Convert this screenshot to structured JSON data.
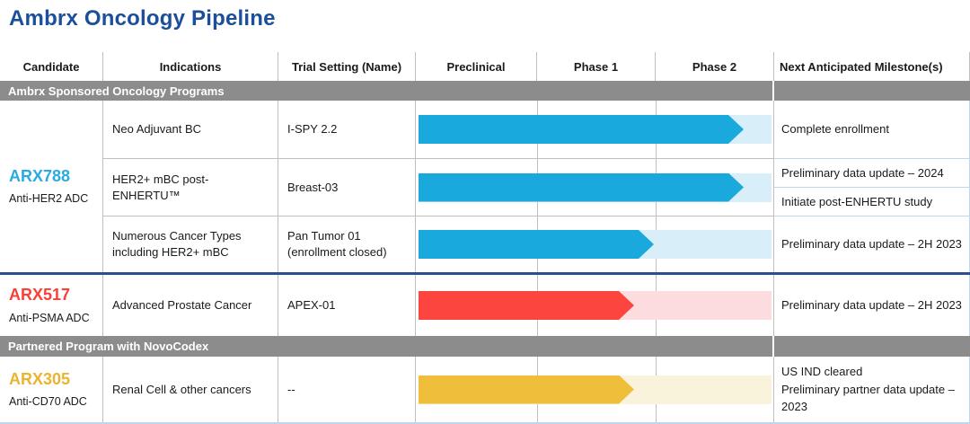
{
  "title": "Ambrx Oncology Pipeline",
  "title_style": "color:#1B4E9B",
  "columns": {
    "candidate": "Candidate",
    "indications": "Indications",
    "trial": "Trial Setting (Name)",
    "preclinical": "Preclinical",
    "phase1": "Phase 1",
    "phase2": "Phase 2",
    "milestones": "Next Anticipated Milestone(s)"
  },
  "sections": {
    "sponsored": {
      "label": "Ambrx Sponsored Oncology Programs"
    },
    "partnered": {
      "label": "Partnered Program with NovoCodex"
    }
  },
  "programs": {
    "arx788": {
      "name": "ARX788",
      "name_style": "color:#29ABE2",
      "type": "Anti-HER2 ADC",
      "rows": {
        "ispy": {
          "indication": "Neo Adjuvant BC",
          "trial": "I-SPY 2.2",
          "milestone": "Complete enrollment",
          "bar_solid": "width:362px;background:#1AA9DD",
          "bar_trail": "background:#D8EEF9"
        },
        "breast03": {
          "indication": "HER2+ mBC post-ENHERTU™",
          "trial": "Breast-03",
          "milestone_1": "Preliminary data update – 2024",
          "milestone_2": "Initiate post-ENHERTU study",
          "bar_solid": "width:362px;background:#1AA9DD",
          "bar_trail": "background:#D8EEF9"
        },
        "pantumor": {
          "indication": "Numerous Cancer Types including HER2+ mBC",
          "trial": "Pan Tumor 01 (enrollment closed)",
          "milestone": "Preliminary data update – 2H 2023",
          "bar_solid": "width:262px;background:#1AA9DD",
          "bar_trail": "background:#D8EEF9"
        }
      }
    },
    "arx517": {
      "name": "ARX517",
      "name_style": "color:#FB3E36",
      "type": "Anti-PSMA ADC",
      "rows": {
        "apex": {
          "indication": "Advanced Prostate Cancer",
          "trial": "APEX-01",
          "milestone": "Preliminary data update – 2H 2023",
          "bar_solid": "width:240px;background:#FC453E",
          "bar_trail": "background:#FCDCDE"
        }
      }
    },
    "arx305": {
      "name": "ARX305",
      "name_style": "color:#EAB42E",
      "type": "Anti-CD70 ADC",
      "rows": {
        "renal": {
          "indication": "Renal Cell & other cancers",
          "trial": "--",
          "milestone_1": "US IND cleared",
          "milestone_2": "Preliminary partner data update – 2023",
          "bar_solid": "width:240px;background:#EFBE3A",
          "bar_trail": "background:#FAF3DB"
        }
      }
    }
  },
  "chart_data": {
    "type": "table",
    "title": "Ambrx Oncology Pipeline",
    "phase_axis": [
      "Preclinical",
      "Phase 1",
      "Phase 2"
    ],
    "legend_position": "none",
    "rows": [
      {
        "candidate": "ARX788",
        "modality": "Anti-HER2 ADC",
        "indication": "Neo Adjuvant BC",
        "trial": "I-SPY 2.2",
        "phase_reached": "Phase 2 (~2/3 through)",
        "progress_fraction": 0.92,
        "bar_color": "#1AA9DD",
        "milestones": [
          "Complete enrollment"
        ]
      },
      {
        "candidate": "ARX788",
        "modality": "Anti-HER2 ADC",
        "indication": "HER2+ mBC post-ENHERTU™",
        "trial": "Breast-03",
        "phase_reached": "Phase 2 (~2/3 through)",
        "progress_fraction": 0.92,
        "bar_color": "#1AA9DD",
        "milestones": [
          "Preliminary data update – 2024",
          "Initiate post-ENHERTU study"
        ]
      },
      {
        "candidate": "ARX788",
        "modality": "Anti-HER2 ADC",
        "indication": "Numerous Cancer Types including HER2+ mBC",
        "trial": "Pan Tumor 01 (enrollment closed)",
        "phase_reached": "end of Phase 1",
        "progress_fraction": 0.66,
        "bar_color": "#1AA9DD",
        "milestones": [
          "Preliminary data update – 2H 2023"
        ]
      },
      {
        "candidate": "ARX517",
        "modality": "Anti-PSMA ADC",
        "indication": "Advanced Prostate Cancer",
        "trial": "APEX-01",
        "phase_reached": "Phase 1 (~80% through)",
        "progress_fraction": 0.61,
        "bar_color": "#FC453E",
        "milestones": [
          "Preliminary data update – 2H 2023"
        ]
      },
      {
        "candidate": "ARX305",
        "modality": "Anti-CD70 ADC",
        "indication": "Renal Cell & other cancers",
        "trial": "--",
        "phase_reached": "Phase 1 (~80% through)",
        "progress_fraction": 0.61,
        "bar_color": "#EFBE3A",
        "milestones": [
          "US IND cleared",
          "Preliminary partner data update – 2023"
        ]
      }
    ]
  }
}
